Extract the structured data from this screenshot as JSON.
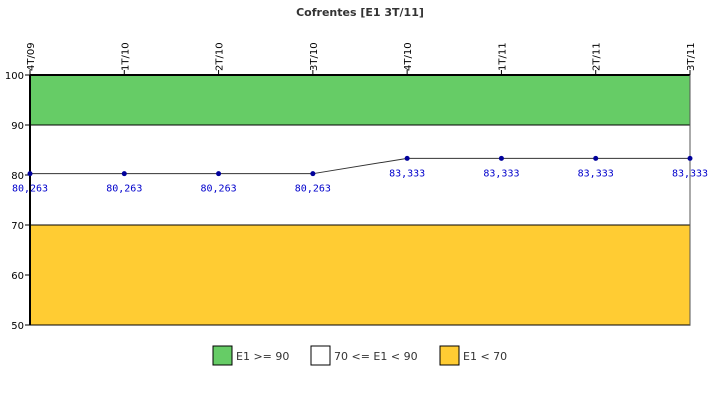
{
  "chart_data": {
    "type": "line",
    "title": "Cofrentes [E1 3T/11]",
    "xlabel": "",
    "ylabel": "",
    "categories": [
      "4T/09",
      "1T/10",
      "2T/10",
      "3T/10",
      "4T/10",
      "1T/11",
      "2T/11",
      "3T/11"
    ],
    "series": [
      {
        "values": [
          80.263,
          80.263,
          80.263,
          80.263,
          83.333,
          83.333,
          83.333,
          83.333
        ],
        "labels": [
          "80,263",
          "80,263",
          "80,263",
          "80,263",
          "83,333",
          "83,333",
          "83,333",
          "83,333"
        ],
        "color": "#00009b"
      }
    ],
    "ylim": [
      50,
      100
    ],
    "yticks": [
      50,
      60,
      70,
      80,
      90,
      100
    ],
    "x_tick_position": "top",
    "grid": false,
    "bands": [
      {
        "from": 90,
        "to": 100,
        "color": "#66cc66",
        "label": "E1 >= 90"
      },
      {
        "from": 70,
        "to": 90,
        "color": "#ffffff",
        "label": "70 <= E1 < 90"
      },
      {
        "from": 50,
        "to": 70,
        "color": "#ffcc33",
        "label": "E1 < 70"
      }
    ],
    "legend_position": "bottom"
  }
}
